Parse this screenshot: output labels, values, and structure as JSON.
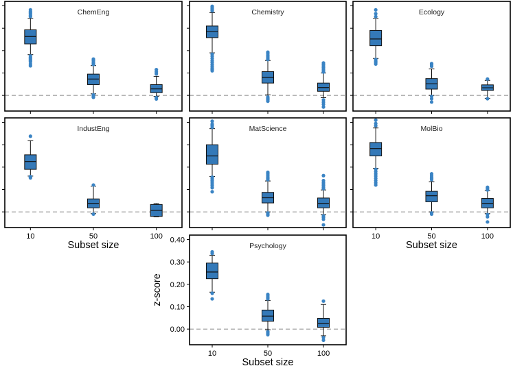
{
  "chart_data": {
    "type": "box",
    "x_categories": [
      "10",
      "50",
      "100"
    ],
    "x_axis_label": "Subset size",
    "y_axis_label": "z-score",
    "y_ticks": [
      "0.00",
      "0.10",
      "0.20",
      "0.30",
      "0.40"
    ],
    "ylim": [
      -0.07,
      0.42
    ],
    "reference_line": {
      "y": 0.0,
      "style": "dashed",
      "color": "#999999"
    },
    "box_color": "#3479b8",
    "outlier_color": "#3b84c4",
    "panels": [
      {
        "title": "ChemEng",
        "boxes": [
          {
            "x": "10",
            "q1": 0.23,
            "median": 0.263,
            "q3": 0.293,
            "whisker_low": 0.182,
            "whisker_high": 0.344,
            "outliers": [
              0.382,
              0.375,
              0.37,
              0.365,
              0.358,
              0.352,
              0.176,
              0.17,
              0.165,
              0.16,
              0.155,
              0.15,
              0.14,
              0.132
            ]
          },
          {
            "x": "50",
            "q1": 0.048,
            "median": 0.073,
            "q3": 0.095,
            "whisker_low": 0.007,
            "whisker_high": 0.133,
            "outliers": [
              0.162,
              0.155,
              0.148,
              0.142,
              0.138,
              0.002,
              -0.004,
              -0.009
            ]
          },
          {
            "x": "100",
            "q1": 0.012,
            "median": 0.029,
            "q3": 0.048,
            "whisker_low": -0.004,
            "whisker_high": 0.085,
            "outliers": [
              0.115,
              0.105,
              0.096,
              -0.01,
              -0.016
            ]
          }
        ]
      },
      {
        "title": "Chemistry",
        "boxes": [
          {
            "x": "10",
            "q1": 0.258,
            "median": 0.285,
            "q3": 0.31,
            "whisker_low": 0.19,
            "whisker_high": 0.37,
            "outliers": [
              0.398,
              0.393,
              0.388,
              0.383,
              0.378,
              0.184,
              0.175,
              0.165,
              0.155,
              0.147,
              0.138,
              0.13,
              0.122,
              0.116,
              0.11
            ]
          },
          {
            "x": "50",
            "q1": 0.055,
            "median": 0.08,
            "q3": 0.106,
            "whisker_low": 0.002,
            "whisker_high": 0.156,
            "outliers": [
              0.193,
              0.186,
              0.179,
              0.172,
              0.166,
              0.16,
              -0.008,
              -0.014,
              -0.02,
              -0.026
            ]
          },
          {
            "x": "100",
            "q1": 0.018,
            "median": 0.035,
            "q3": 0.055,
            "whisker_low": -0.01,
            "whisker_high": 0.1,
            "outliers": [
              0.145,
              0.138,
              0.131,
              0.124,
              0.117,
              0.11,
              0.104,
              -0.02,
              -0.03,
              -0.04,
              -0.052
            ]
          }
        ]
      },
      {
        "title": "Ecology",
        "boxes": [
          {
            "x": "10",
            "q1": 0.222,
            "median": 0.252,
            "q3": 0.29,
            "whisker_low": 0.165,
            "whisker_high": 0.345,
            "outliers": [
              0.382,
              0.365,
              0.352,
              0.16,
              0.153,
              0.146,
              0.14
            ]
          },
          {
            "x": "50",
            "q1": 0.028,
            "median": 0.052,
            "q3": 0.075,
            "whisker_low": 0.0,
            "whisker_high": 0.118,
            "outliers": [
              0.142,
              0.136,
              0.13,
              -0.005,
              -0.015,
              -0.03
            ]
          },
          {
            "x": "100",
            "q1": 0.022,
            "median": 0.034,
            "q3": 0.047,
            "whisker_low": -0.013,
            "whisker_high": 0.067,
            "outliers": [
              0.073,
              -0.015
            ]
          }
        ]
      },
      {
        "title": "IndustEng",
        "boxes": [
          {
            "x": "10",
            "q1": 0.19,
            "median": 0.225,
            "q3": 0.255,
            "whisker_low": 0.16,
            "whisker_high": 0.318,
            "outliers": [
              0.338,
              0.158,
              0.155,
              0.152
            ]
          },
          {
            "x": "50",
            "q1": 0.018,
            "median": 0.038,
            "q3": 0.058,
            "whisker_low": -0.008,
            "whisker_high": 0.115,
            "outliers": [
              0.12,
              -0.01
            ]
          },
          {
            "x": "100",
            "q1": -0.02,
            "median": 0.007,
            "q3": 0.033,
            "whisker_low": -0.022,
            "whisker_high": 0.037,
            "outliers": []
          }
        ]
      },
      {
        "title": "MatScience",
        "boxes": [
          {
            "x": "10",
            "q1": 0.213,
            "median": 0.25,
            "q3": 0.3,
            "whisker_low": 0.158,
            "whisker_high": 0.372,
            "outliers": [
              0.405,
              0.392,
              0.385,
              0.378,
              0.155,
              0.148,
              0.14,
              0.133,
              0.125,
              0.117,
              0.108,
              0.09
            ]
          },
          {
            "x": "50",
            "q1": 0.04,
            "median": 0.063,
            "q3": 0.087,
            "whisker_low": 0.0,
            "whisker_high": 0.138,
            "outliers": [
              0.177,
              0.17,
              0.163,
              0.156,
              0.15,
              0.144,
              -0.005,
              -0.01,
              -0.015
            ]
          },
          {
            "x": "100",
            "q1": 0.018,
            "median": 0.038,
            "q3": 0.062,
            "whisker_low": -0.012,
            "whisker_high": 0.098,
            "outliers": [
              0.162,
              0.14,
              0.132,
              0.125,
              0.118,
              0.11,
              0.104,
              -0.018,
              -0.025,
              -0.033,
              -0.058
            ]
          }
        ]
      },
      {
        "title": "MolBio",
        "boxes": [
          {
            "x": "10",
            "q1": 0.25,
            "median": 0.283,
            "q3": 0.31,
            "whisker_low": 0.195,
            "whisker_high": 0.375,
            "outliers": [
              0.41,
              0.395,
              0.385,
              0.19,
              0.18,
              0.17,
              0.16,
              0.15,
              0.14,
              0.13,
              0.12
            ]
          },
          {
            "x": "50",
            "q1": 0.045,
            "median": 0.072,
            "q3": 0.092,
            "whisker_low": 0.0,
            "whisker_high": 0.135,
            "outliers": [
              0.17,
              0.163,
              0.156,
              0.15,
              0.144,
              -0.005,
              -0.01
            ]
          },
          {
            "x": "100",
            "q1": 0.018,
            "median": 0.038,
            "q3": 0.06,
            "whisker_low": -0.008,
            "whisker_high": 0.095,
            "outliers": [
              0.11,
              0.104,
              0.098,
              -0.012,
              -0.022,
              -0.045
            ]
          }
        ]
      },
      {
        "title": "Psychology",
        "boxes": [
          {
            "x": "10",
            "q1": 0.225,
            "median": 0.255,
            "q3": 0.295,
            "whisker_low": 0.165,
            "whisker_high": 0.33,
            "outliers": [
              0.345,
              0.338,
              0.16,
              0.135
            ]
          },
          {
            "x": "50",
            "q1": 0.035,
            "median": 0.058,
            "q3": 0.085,
            "whisker_low": -0.003,
            "whisker_high": 0.128,
            "outliers": [
              0.155,
              0.148,
              0.141,
              0.135,
              -0.012,
              -0.018,
              -0.025
            ]
          },
          {
            "x": "100",
            "q1": 0.008,
            "median": 0.026,
            "q3": 0.048,
            "whisker_low": -0.03,
            "whisker_high": 0.11,
            "outliers": [
              0.125,
              -0.038,
              -0.05
            ]
          }
        ]
      }
    ]
  }
}
